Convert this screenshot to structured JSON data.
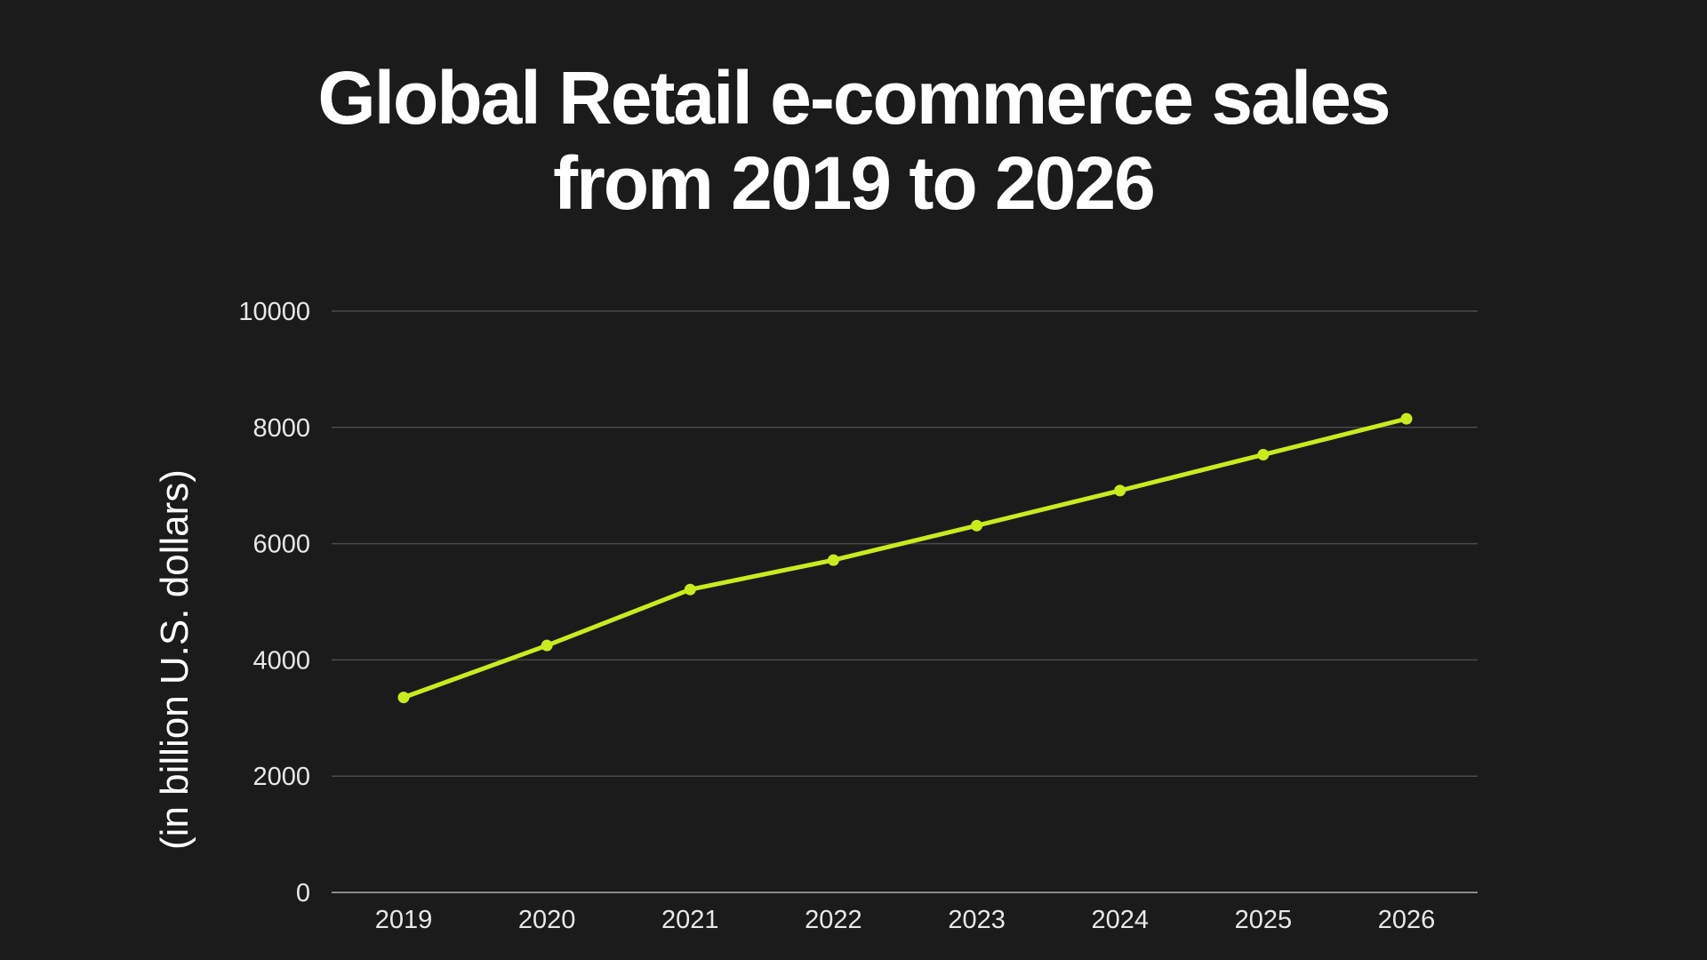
{
  "chart_data": {
    "type": "line",
    "title_lines": [
      "Global Retail e-commerce sales",
      "from 2019 to 2026"
    ],
    "xlabel": "",
    "ylabel": "(in billion U.S. dollars)",
    "categories": [
      "2019",
      "2020",
      "2021",
      "2022",
      "2023",
      "2024",
      "2025",
      "2026"
    ],
    "series": [
      {
        "name": "Retail e-commerce sales",
        "values": [
          3354,
          4248,
          5211,
          5717,
          6310,
          6913,
          7530,
          8148
        ]
      }
    ],
    "ylim": [
      0,
      10000
    ],
    "yticks": [
      "0",
      "2000",
      "4000",
      "6000",
      "8000",
      "10000"
    ],
    "grid": true,
    "line_color": "#c8ec1c",
    "background": "#1b1b1b"
  }
}
